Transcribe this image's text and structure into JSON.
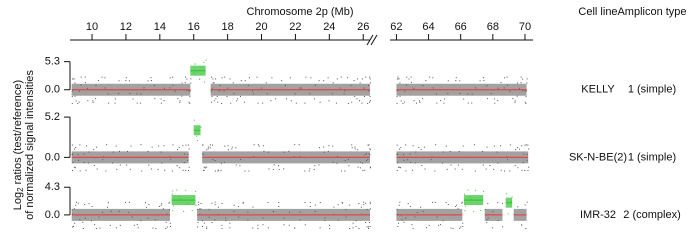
{
  "chart_data": {
    "type": "segments",
    "x_label": "Chromosome 2p (Mb)",
    "xlim_left": [
      8.7,
      26.4
    ],
    "xticks_left": [
      10,
      12,
      14,
      16,
      18,
      20,
      22,
      24,
      26
    ],
    "xlim_right": [
      61.6,
      70.5
    ],
    "xticks_right": [
      62,
      64,
      66,
      68,
      70
    ],
    "y_label": {
      "prefix": "Log",
      "subscript": "2",
      "rest": " ratios (test/reference)",
      "line2": "of normalized signal intensities"
    },
    "column_headers": [
      "Cell line",
      "Amplicon type"
    ],
    "noise_color": "#555555",
    "baseline_color": "#e04848",
    "amp_color": "#3cc43c",
    "panels": [
      {
        "cell_line": "KELLY",
        "amplicon_type": "1 (simple)",
        "ylim": [
          -2.5,
          5.8
        ],
        "yticks": [
          {
            "value": 0,
            "label": "0.0"
          },
          5.3
        ],
        "left_segments": [
          {
            "start": 8.8,
            "end": 15.8,
            "level": 0,
            "amplified": false
          },
          {
            "start": 15.8,
            "end": 16.7,
            "level": 3.6,
            "amplified": true
          },
          {
            "start": 17.0,
            "end": 26.4,
            "level": 0,
            "amplified": false
          }
        ],
        "right_segments": [
          {
            "start": 62.0,
            "end": 70.1,
            "level": 0,
            "amplified": false
          }
        ]
      },
      {
        "cell_line": "SK-N-BE(2)",
        "amplicon_type": "1 (simple)",
        "ylim": [
          -1.5,
          5.6
        ],
        "yticks": [
          {
            "value": 0,
            "label": "0.0"
          },
          5.2
        ],
        "left_segments": [
          {
            "start": 8.8,
            "end": 15.7,
            "level": 0,
            "amplified": false
          },
          {
            "start": 16.0,
            "end": 16.4,
            "level": 3.5,
            "amplified": true
          },
          {
            "start": 16.5,
            "end": 26.4,
            "level": 0,
            "amplified": false
          }
        ],
        "right_segments": [
          {
            "start": 62.0,
            "end": 70.2,
            "level": 0,
            "amplified": false
          }
        ]
      },
      {
        "cell_line": "IMR-32",
        "amplicon_type": "2 (complex)",
        "ylim": [
          -2.5,
          4.8
        ],
        "yticks": [
          {
            "value": 0,
            "label": "0.0"
          },
          4.3
        ],
        "left_segments": [
          {
            "start": 8.8,
            "end": 14.6,
            "level": 0,
            "amplified": false
          },
          {
            "start": 14.7,
            "end": 16.1,
            "level": 2.3,
            "amplified": true
          },
          {
            "start": 16.2,
            "end": 26.4,
            "level": 0,
            "amplified": false
          }
        ],
        "right_segments": [
          {
            "start": 62.0,
            "end": 66.1,
            "level": 0,
            "amplified": false
          },
          {
            "start": 66.2,
            "end": 67.4,
            "level": 2.3,
            "amplified": true
          },
          {
            "start": 67.5,
            "end": 68.6,
            "level": 0,
            "amplified": false
          },
          {
            "start": 68.8,
            "end": 69.2,
            "level": 1.9,
            "amplified": true
          },
          {
            "start": 69.3,
            "end": 70.1,
            "level": 0,
            "amplified": false
          }
        ]
      }
    ]
  }
}
